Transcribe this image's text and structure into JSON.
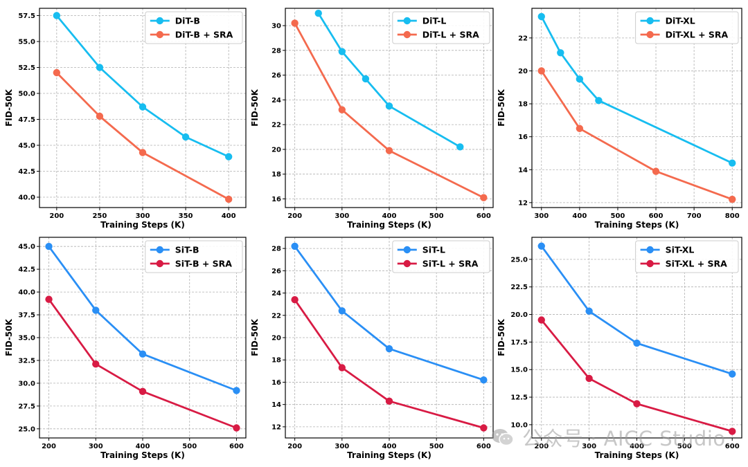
{
  "chart_data": [
    {
      "type": "line",
      "xlabel": "Training Steps (K)",
      "ylabel": "FID-50K",
      "xlim": [
        180,
        420
      ],
      "ylim": [
        39.0,
        58.2
      ],
      "xticks": [
        200,
        250,
        300,
        350,
        400
      ],
      "yticks": [
        40.0,
        42.5,
        45.0,
        47.5,
        50.0,
        52.5,
        55.0,
        57.5
      ],
      "ytick_format": 1,
      "grid": true,
      "legend": "top-right",
      "series": [
        {
          "name": "DiT-B",
          "color": "#17bdf0",
          "x": [
            200,
            250,
            300,
            350,
            400
          ],
          "values": [
            57.5,
            52.5,
            48.7,
            45.8,
            43.9
          ]
        },
        {
          "name": "DiT-B + SRA",
          "color": "#f46a4e",
          "x": [
            200,
            250,
            300,
            400
          ],
          "values": [
            52.0,
            47.8,
            44.3,
            39.8
          ]
        }
      ]
    },
    {
      "type": "line",
      "xlabel": "Training Steps (K)",
      "ylabel": "FID-50K",
      "xlim": [
        180,
        620
      ],
      "ylim": [
        15.3,
        31.4
      ],
      "xticks": [
        200,
        300,
        400,
        500,
        600
      ],
      "yticks": [
        16,
        18,
        20,
        22,
        24,
        26,
        28,
        30
      ],
      "ytick_format": 0,
      "grid": true,
      "legend": "top-right",
      "series": [
        {
          "name": "DiT-L",
          "color": "#17bdf0",
          "x": [
            250,
            300,
            350,
            400,
            550
          ],
          "values": [
            31.0,
            27.9,
            25.7,
            23.5,
            20.2
          ]
        },
        {
          "name": "DiT-L + SRA",
          "color": "#f46a4e",
          "x": [
            200,
            300,
            400,
            600
          ],
          "values": [
            30.2,
            23.2,
            19.9,
            16.1
          ]
        }
      ]
    },
    {
      "type": "line",
      "xlabel": "Training Steps (K)",
      "ylabel": "FID-50K",
      "xlim": [
        275,
        825
      ],
      "ylim": [
        11.7,
        23.8
      ],
      "xticks": [
        300,
        400,
        500,
        600,
        700,
        800
      ],
      "yticks": [
        12,
        14,
        16,
        18,
        20,
        22
      ],
      "ytick_format": 0,
      "grid": true,
      "legend": "top-right",
      "series": [
        {
          "name": "DiT-XL",
          "color": "#17bdf0",
          "x": [
            300,
            350,
            400,
            450,
            800
          ],
          "values": [
            23.3,
            21.1,
            19.5,
            18.2,
            14.4
          ]
        },
        {
          "name": "DiT-XL + SRA",
          "color": "#f46a4e",
          "x": [
            300,
            400,
            600,
            800
          ],
          "values": [
            20.0,
            16.5,
            13.9,
            12.2
          ]
        }
      ]
    },
    {
      "type": "line",
      "xlabel": "Training Steps (K)",
      "ylabel": "FID-50K",
      "xlim": [
        180,
        620
      ],
      "ylim": [
        24.0,
        46.0
      ],
      "xticks": [
        200,
        300,
        400,
        500,
        600
      ],
      "yticks": [
        25.0,
        27.5,
        30.0,
        32.5,
        35.0,
        37.5,
        40.0,
        42.5,
        45.0
      ],
      "ytick_format": 1,
      "grid": true,
      "legend": "top-right",
      "series": [
        {
          "name": "SiT-B",
          "color": "#2a8ff5",
          "x": [
            200,
            300,
            400,
            600
          ],
          "values": [
            45.0,
            38.0,
            33.2,
            29.2
          ]
        },
        {
          "name": "SiT-B + SRA",
          "color": "#d81b44",
          "x": [
            200,
            300,
            400,
            600
          ],
          "values": [
            39.2,
            32.1,
            29.1,
            25.1
          ]
        }
      ]
    },
    {
      "type": "line",
      "xlabel": "Training Steps (K)",
      "ylabel": "FID-50K",
      "xlim": [
        180,
        620
      ],
      "ylim": [
        11.0,
        29.0
      ],
      "xticks": [
        200,
        300,
        400,
        500,
        600
      ],
      "yticks": [
        12,
        14,
        16,
        18,
        20,
        22,
        24,
        26,
        28
      ],
      "ytick_format": 0,
      "grid": true,
      "legend": "top-right",
      "series": [
        {
          "name": "SiT-L",
          "color": "#2a8ff5",
          "x": [
            200,
            300,
            400,
            600
          ],
          "values": [
            28.2,
            22.4,
            19.0,
            16.2
          ]
        },
        {
          "name": "SiT-L + SRA",
          "color": "#d81b44",
          "x": [
            200,
            300,
            400,
            600
          ],
          "values": [
            23.4,
            17.3,
            14.3,
            11.9
          ]
        }
      ]
    },
    {
      "type": "line",
      "xlabel": "Training Steps (K)",
      "ylabel": "FID-50K",
      "xlim": [
        180,
        620
      ],
      "ylim": [
        8.8,
        27.0
      ],
      "xticks": [
        200,
        300,
        400,
        500,
        600
      ],
      "yticks": [
        10.0,
        12.5,
        15.0,
        17.5,
        20.0,
        22.5,
        25.0
      ],
      "ytick_format": 1,
      "grid": true,
      "legend": "top-right",
      "series": [
        {
          "name": "SiT-XL",
          "color": "#2a8ff5",
          "x": [
            200,
            300,
            400,
            600
          ],
          "values": [
            26.2,
            20.3,
            17.4,
            14.6
          ]
        },
        {
          "name": "SiT-XL + SRA",
          "color": "#d81b44",
          "x": [
            200,
            300,
            400,
            600
          ],
          "values": [
            19.5,
            14.2,
            11.9,
            9.4
          ]
        }
      ]
    }
  ],
  "watermark": {
    "icon": "wechat-icon",
    "text": "公众号 · AICC Studio"
  }
}
